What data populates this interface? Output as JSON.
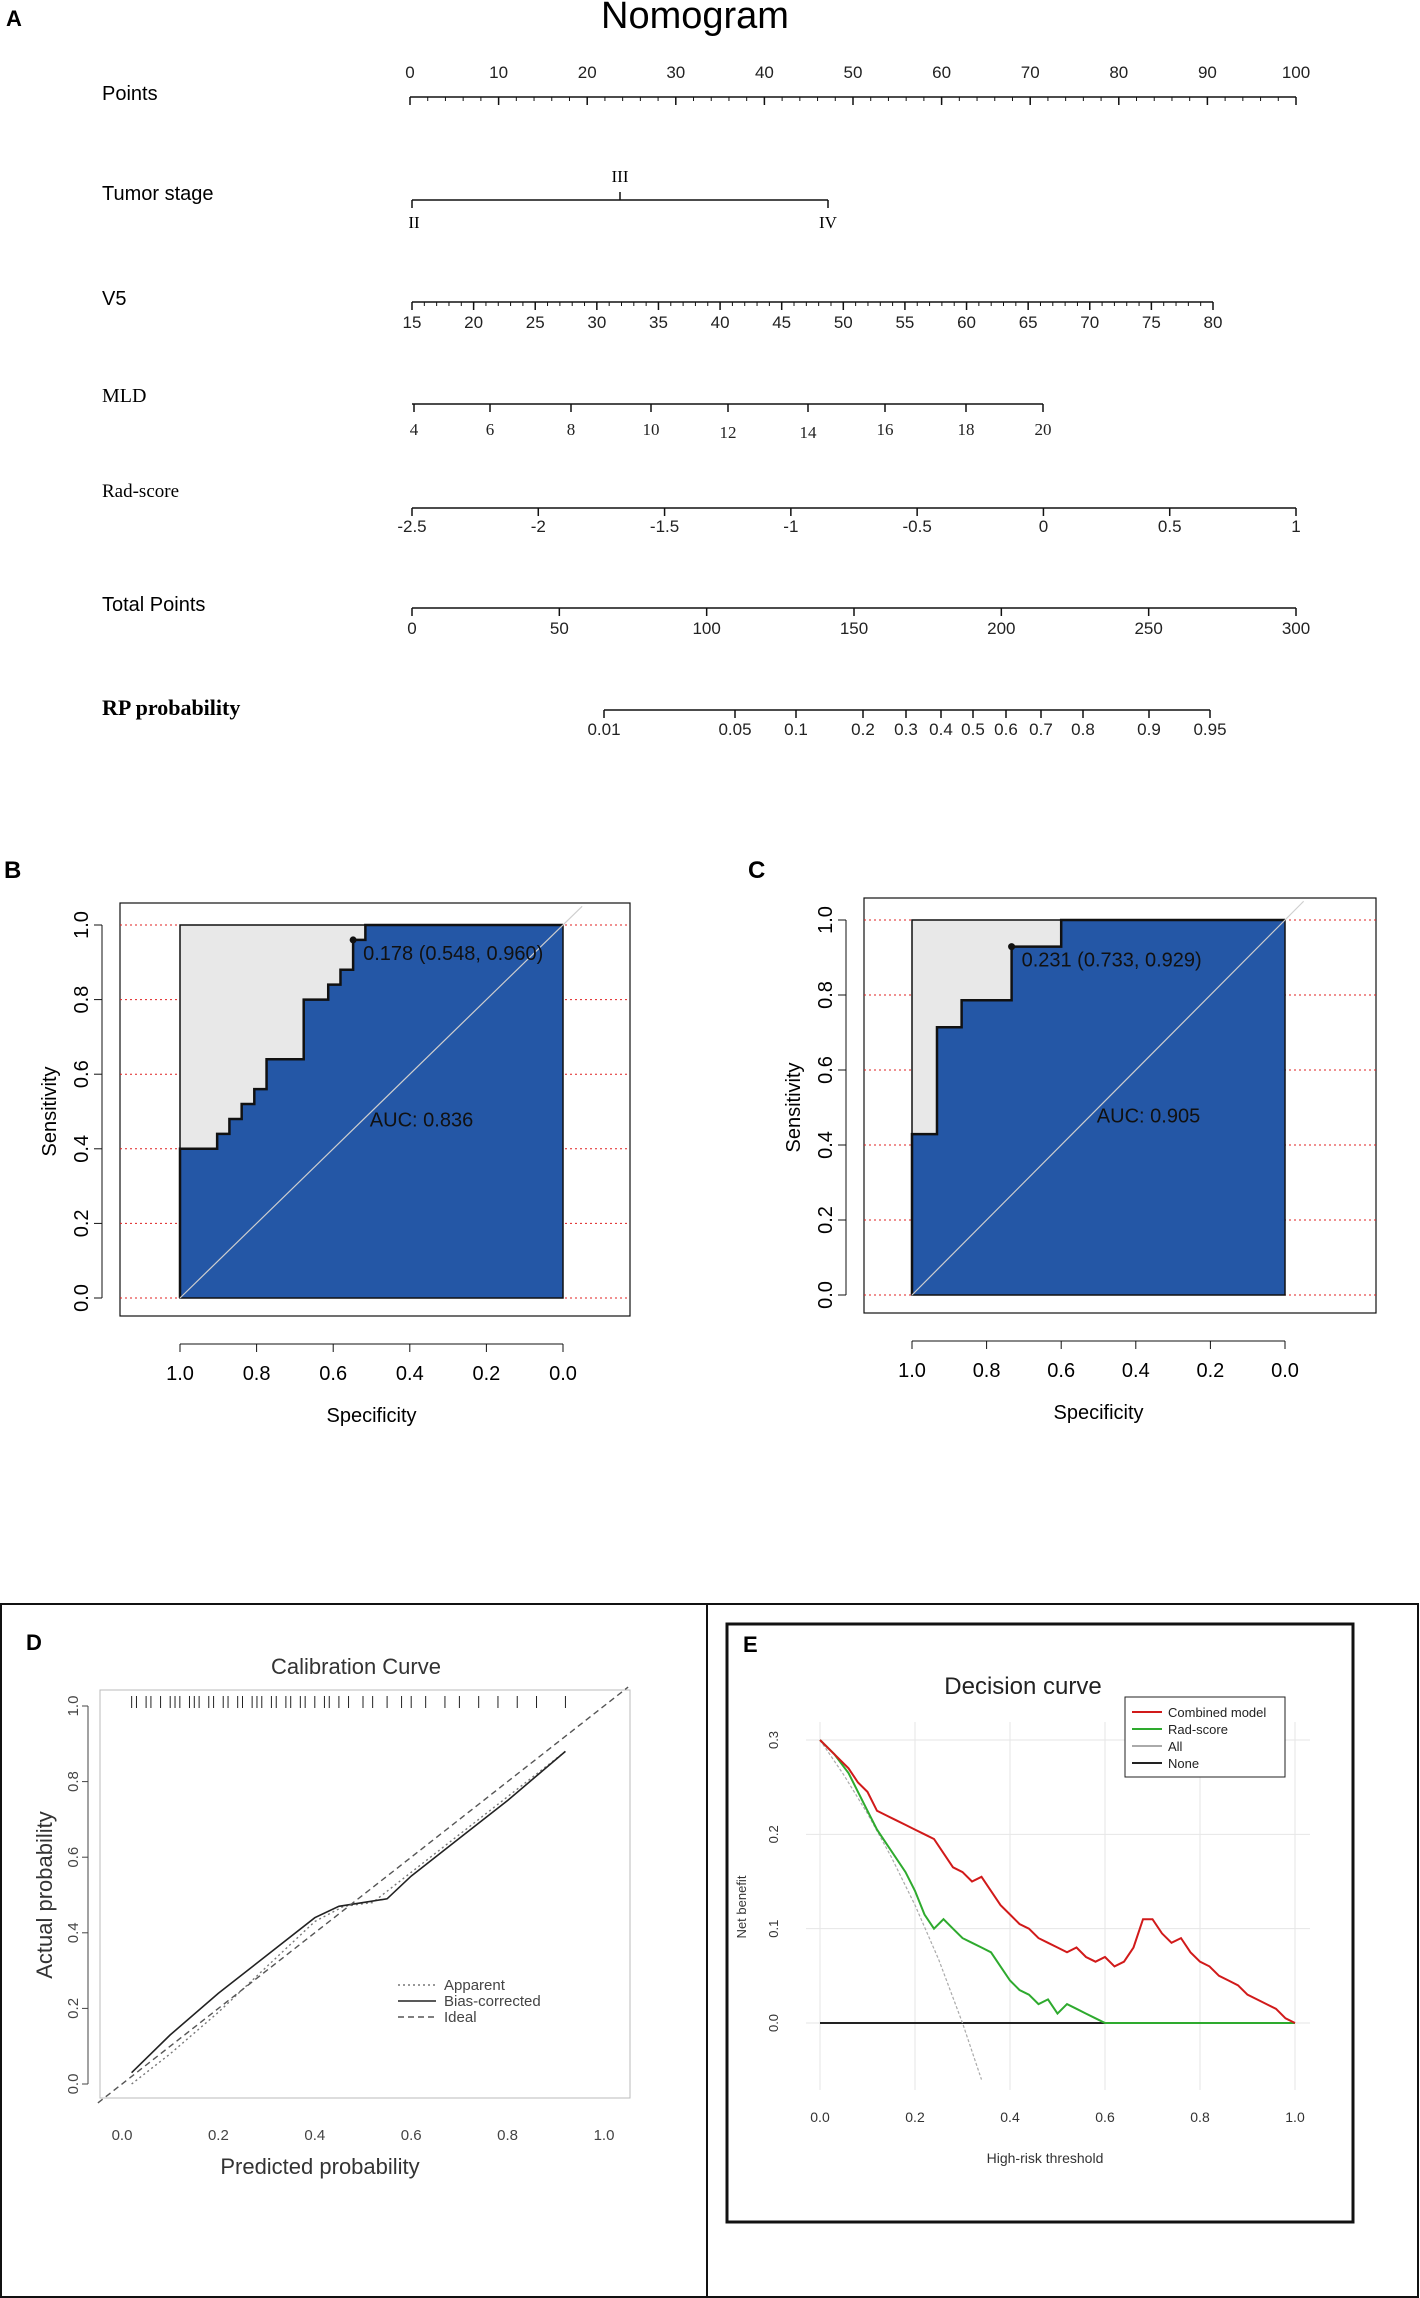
{
  "panels": {
    "a": "A",
    "b": "B",
    "c": "C",
    "d": "D",
    "e": "E"
  },
  "nomogram": {
    "title": "Nomogram",
    "rows": [
      {
        "label": "Points",
        "ticks": [
          "0",
          "10",
          "20",
          "30",
          "40",
          "50",
          "60",
          "70",
          "80",
          "90",
          "100"
        ]
      },
      {
        "label": "Tumor stage",
        "ticks": [
          "II",
          "III",
          "IV"
        ]
      },
      {
        "label": "V5",
        "ticks": [
          "15",
          "20",
          "25",
          "30",
          "35",
          "40",
          "45",
          "50",
          "55",
          "60",
          "65",
          "70",
          "75",
          "80"
        ]
      },
      {
        "label": "MLD",
        "ticks": [
          "4",
          "6",
          "8",
          "10",
          "12",
          "14",
          "16",
          "18",
          "20"
        ]
      },
      {
        "label": "Rad-score",
        "ticks": [
          "-2.5",
          "-2",
          "-1.5",
          "-1",
          "-0.5",
          "0",
          "0.5",
          "1"
        ]
      },
      {
        "label": "Total Points",
        "ticks": [
          "0",
          "50",
          "100",
          "150",
          "200",
          "250",
          "300"
        ]
      },
      {
        "label": "RP probability",
        "ticks": [
          "0.01",
          "0.05",
          "0.1",
          "0.2",
          "0.3",
          "0.4",
          "0.5",
          "0.6",
          "0.7",
          "0.8",
          "0.9",
          "0.95"
        ]
      }
    ]
  },
  "chart_data": [
    {
      "id": "B",
      "type": "line",
      "title": "",
      "xlabel": "Specificity",
      "ylabel": "Sensitivity",
      "xlim": [
        1.0,
        0.0
      ],
      "ylim": [
        0.0,
        1.0
      ],
      "xticks": [
        "1.0",
        "0.8",
        "0.6",
        "0.4",
        "0.2",
        "0.0"
      ],
      "yticks": [
        "0.0",
        "0.2",
        "0.4",
        "0.6",
        "0.8",
        "1.0"
      ],
      "auc_label": "AUC: 0.836",
      "threshold_label": "0.178 (0.548, 0.960)",
      "threshold_point": {
        "specificity": 0.548,
        "sensitivity": 0.96
      },
      "roc": {
        "specificity": [
          1.0,
          1.0,
          0.903,
          0.903,
          0.871,
          0.871,
          0.839,
          0.839,
          0.806,
          0.806,
          0.774,
          0.774,
          0.677,
          0.677,
          0.613,
          0.613,
          0.581,
          0.581,
          0.548,
          0.548,
          0.516,
          0.516,
          0.0
        ],
        "sensitivity": [
          0.0,
          0.4,
          0.4,
          0.44,
          0.44,
          0.48,
          0.48,
          0.52,
          0.52,
          0.56,
          0.56,
          0.64,
          0.64,
          0.8,
          0.8,
          0.84,
          0.84,
          0.88,
          0.88,
          0.96,
          0.96,
          1.0,
          1.0
        ]
      }
    },
    {
      "id": "C",
      "type": "line",
      "title": "",
      "xlabel": "Specificity",
      "ylabel": "Sensitivity",
      "xlim": [
        1.0,
        0.0
      ],
      "ylim": [
        0.0,
        1.0
      ],
      "xticks": [
        "1.0",
        "0.8",
        "0.6",
        "0.4",
        "0.2",
        "0.0"
      ],
      "yticks": [
        "0.0",
        "0.2",
        "0.4",
        "0.6",
        "0.8",
        "1.0"
      ],
      "auc_label": "AUC: 0.905",
      "threshold_label": "0.231 (0.733, 0.929)",
      "threshold_point": {
        "specificity": 0.733,
        "sensitivity": 0.929
      },
      "roc": {
        "specificity": [
          1.0,
          1.0,
          0.933,
          0.933,
          0.867,
          0.867,
          0.733,
          0.733,
          0.6,
          0.6,
          0.0
        ],
        "sensitivity": [
          0.0,
          0.429,
          0.429,
          0.714,
          0.714,
          0.786,
          0.786,
          0.929,
          0.929,
          1.0,
          1.0
        ]
      }
    },
    {
      "id": "D",
      "type": "line",
      "title": "Calibration Curve",
      "xlabel": "Predicted probability",
      "ylabel": "Actual probability",
      "xlim": [
        0.0,
        1.0
      ],
      "ylim": [
        0.0,
        1.0
      ],
      "xticks": [
        "0.0",
        "0.2",
        "0.4",
        "0.6",
        "0.8",
        "1.0"
      ],
      "yticks": [
        "0.0",
        "0.2",
        "0.4",
        "0.6",
        "0.8",
        "1.0"
      ],
      "legend": [
        "Apparent",
        "Bias-corrected",
        "Ideal"
      ],
      "series": [
        {
          "name": "Apparent",
          "x": [
            0.02,
            0.1,
            0.2,
            0.3,
            0.4,
            0.46,
            0.52,
            0.6,
            0.7,
            0.8,
            0.92
          ],
          "y": [
            0.0,
            0.08,
            0.19,
            0.31,
            0.43,
            0.47,
            0.48,
            0.56,
            0.66,
            0.76,
            0.88
          ]
        },
        {
          "name": "Bias-corrected",
          "x": [
            0.02,
            0.1,
            0.2,
            0.3,
            0.4,
            0.45,
            0.5,
            0.55,
            0.6,
            0.7,
            0.8,
            0.92
          ],
          "y": [
            0.03,
            0.13,
            0.24,
            0.34,
            0.44,
            0.47,
            0.48,
            0.49,
            0.55,
            0.65,
            0.75,
            0.88
          ]
        },
        {
          "name": "Ideal",
          "x": [
            -0.05,
            1.05
          ],
          "y": [
            -0.05,
            1.05
          ]
        }
      ],
      "rug": [
        0.02,
        0.03,
        0.05,
        0.06,
        0.08,
        0.1,
        0.11,
        0.12,
        0.14,
        0.15,
        0.16,
        0.18,
        0.19,
        0.21,
        0.22,
        0.24,
        0.25,
        0.27,
        0.28,
        0.29,
        0.31,
        0.32,
        0.34,
        0.35,
        0.37,
        0.38,
        0.4,
        0.42,
        0.43,
        0.45,
        0.47,
        0.5,
        0.52,
        0.55,
        0.58,
        0.6,
        0.63,
        0.67,
        0.7,
        0.74,
        0.78,
        0.82,
        0.86,
        0.92
      ]
    },
    {
      "id": "E",
      "type": "line",
      "title": "Decision curve",
      "xlabel": "High-risk threshold",
      "ylabel": "Net benefit",
      "xlim": [
        0.0,
        1.0
      ],
      "ylim": [
        -0.05,
        0.3
      ],
      "xticks": [
        "0.0",
        "0.2",
        "0.4",
        "0.6",
        "0.8",
        "1.0"
      ],
      "yticks": [
        "0.0",
        "0.1",
        "0.2",
        "0.3"
      ],
      "series": [
        {
          "name": "Combined model",
          "color": "#d11a1a",
          "x": [
            0.0,
            0.03,
            0.06,
            0.08,
            0.1,
            0.12,
            0.14,
            0.16,
            0.18,
            0.2,
            0.22,
            0.24,
            0.26,
            0.28,
            0.3,
            0.32,
            0.34,
            0.36,
            0.38,
            0.4,
            0.42,
            0.44,
            0.46,
            0.48,
            0.5,
            0.52,
            0.54,
            0.56,
            0.58,
            0.6,
            0.62,
            0.64,
            0.66,
            0.68,
            0.7,
            0.72,
            0.74,
            0.76,
            0.78,
            0.8,
            0.82,
            0.84,
            0.86,
            0.88,
            0.9,
            0.92,
            0.94,
            0.96,
            0.98,
            1.0
          ],
          "y": [
            0.3,
            0.285,
            0.27,
            0.255,
            0.245,
            0.225,
            0.22,
            0.215,
            0.21,
            0.205,
            0.2,
            0.195,
            0.18,
            0.165,
            0.16,
            0.15,
            0.155,
            0.14,
            0.125,
            0.115,
            0.105,
            0.1,
            0.09,
            0.085,
            0.08,
            0.075,
            0.08,
            0.07,
            0.065,
            0.07,
            0.06,
            0.065,
            0.08,
            0.11,
            0.11,
            0.095,
            0.085,
            0.09,
            0.075,
            0.065,
            0.06,
            0.05,
            0.045,
            0.04,
            0.03,
            0.025,
            0.02,
            0.015,
            0.005,
            0.0
          ]
        },
        {
          "name": "Rad-score",
          "color": "#2eaa2e",
          "x": [
            0.0,
            0.03,
            0.06,
            0.08,
            0.1,
            0.12,
            0.14,
            0.16,
            0.18,
            0.2,
            0.22,
            0.24,
            0.26,
            0.28,
            0.3,
            0.32,
            0.34,
            0.36,
            0.38,
            0.4,
            0.42,
            0.44,
            0.46,
            0.48,
            0.5,
            0.52,
            0.54,
            0.56,
            0.58,
            0.6,
            0.62,
            0.7,
            0.8,
            0.9,
            1.0
          ],
          "y": [
            0.3,
            0.285,
            0.265,
            0.245,
            0.225,
            0.205,
            0.19,
            0.175,
            0.16,
            0.14,
            0.115,
            0.1,
            0.11,
            0.1,
            0.09,
            0.085,
            0.08,
            0.075,
            0.06,
            0.045,
            0.035,
            0.03,
            0.02,
            0.025,
            0.01,
            0.02,
            0.015,
            0.01,
            0.005,
            0.0,
            0.0,
            0.0,
            0.0,
            0.0,
            0.0
          ]
        },
        {
          "name": "All",
          "color": "#aaaaaa",
          "x": [
            0.0,
            0.05,
            0.1,
            0.15,
            0.2,
            0.25,
            0.3,
            0.34
          ],
          "y": [
            0.3,
            0.263,
            0.222,
            0.176,
            0.125,
            0.067,
            0.0,
            -0.06
          ]
        },
        {
          "name": "None",
          "color": "#222222",
          "x": [
            0.0,
            1.0
          ],
          "y": [
            0.0,
            0.0
          ]
        }
      ],
      "legend": [
        "Combined model",
        "Rad-score",
        "All",
        "None"
      ]
    }
  ]
}
